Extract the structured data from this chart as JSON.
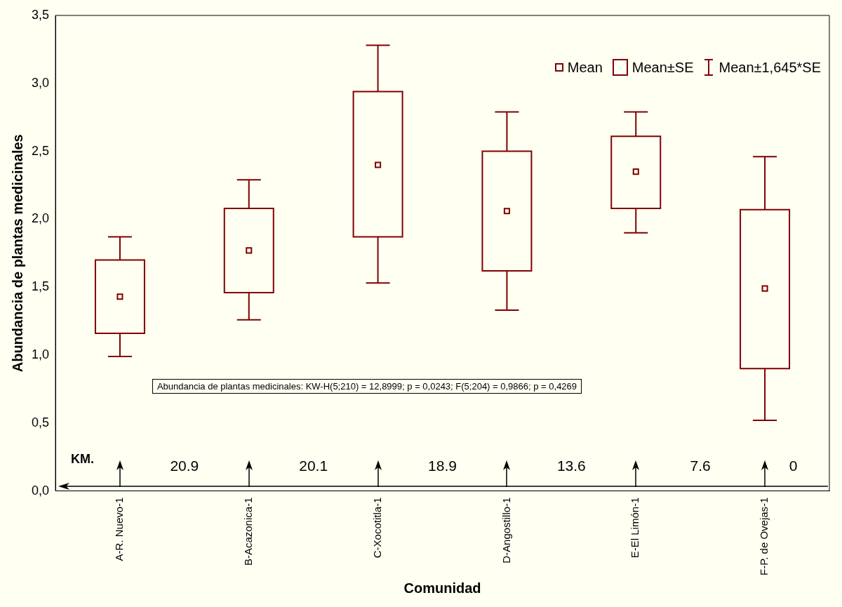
{
  "chart_data": {
    "type": "box",
    "xlabel": "Comunidad",
    "ylabel": "Abundancia de plantas medicinales",
    "categories": [
      "A-R. Nuevo-1",
      "B-Acazonica-1",
      "C-Xocotitla-1",
      "D-Angostillo-1",
      "E-El Limón-1",
      "F-P. de Ovejas-1"
    ],
    "boxes": [
      {
        "low": 0.99,
        "q1": 1.16,
        "median": 1.43,
        "q3": 1.7,
        "high": 1.87
      },
      {
        "low": 1.26,
        "q1": 1.46,
        "median": 1.77,
        "q3": 2.08,
        "high": 2.29
      },
      {
        "low": 1.53,
        "q1": 1.87,
        "median": 2.4,
        "q3": 2.94,
        "high": 3.28
      },
      {
        "low": 1.33,
        "q1": 1.62,
        "median": 2.06,
        "q3": 2.5,
        "high": 2.79
      },
      {
        "low": 1.9,
        "q1": 2.08,
        "median": 2.35,
        "q3": 2.61,
        "high": 2.79
      },
      {
        "low": 0.52,
        "q1": 0.9,
        "median": 1.49,
        "q3": 2.07,
        "high": 2.46
      }
    ],
    "color": "#800000",
    "ylim": [
      0,
      3.5
    ],
    "yticks": [
      {
        "value": 0,
        "label": "0,0"
      },
      {
        "value": 0.5,
        "label": "0,5"
      },
      {
        "value": 1,
        "label": "1,0"
      },
      {
        "value": 1.5,
        "label": "1,5"
      },
      {
        "value": 2,
        "label": "2,0"
      },
      {
        "value": 2.5,
        "label": "2,5"
      },
      {
        "value": 3,
        "label": "3,0"
      },
      {
        "value": 3.5,
        "label": "3,5"
      }
    ],
    "grid": false,
    "annotations": [
      "Mean",
      "Mean±SE",
      "Mean±1,645*SE",
      "Abundancia de plantas medicinales:  KW-H(5;210) = 12,8999; p = 0,0243;  F(5;204) = 0,9866; p = 0,4269",
      "KM.",
      "20.9",
      "20.1",
      "18.9",
      "13.6",
      "7.6",
      "0"
    ]
  }
}
